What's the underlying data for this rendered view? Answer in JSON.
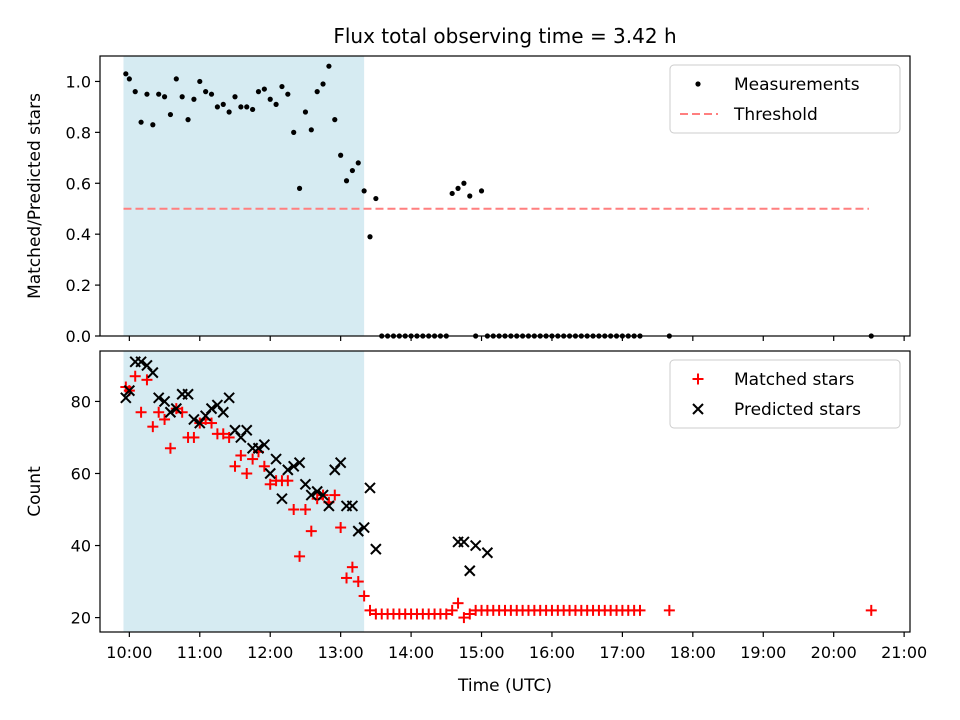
{
  "chart_data": [
    {
      "type": "scatter",
      "title": "Flux total observing time = 3.42 h",
      "xlabel": "",
      "ylabel": "Matched/Predicted stars",
      "xlim": [
        "09:35",
        "21:05"
      ],
      "ylim": [
        0.0,
        1.1
      ],
      "yticks": [
        0.0,
        0.2,
        0.4,
        0.6,
        0.8,
        1.0
      ],
      "yticklabels": [
        "0.0",
        "0.2",
        "0.4",
        "0.6",
        "0.8",
        "1.0"
      ],
      "grid": false,
      "legend": "top-right",
      "shaded_region": {
        "x": [
          "09:55",
          "13:20"
        ],
        "color": "#add8e6"
      },
      "series": [
        {
          "name": "Measurements",
          "marker": "dot",
          "color": "#000000",
          "x": [
            "09:57",
            "10:00",
            "10:05",
            "10:10",
            "10:15",
            "10:20",
            "10:25",
            "10:30",
            "10:35",
            "10:40",
            "10:45",
            "10:50",
            "10:55",
            "11:00",
            "11:05",
            "11:10",
            "11:15",
            "11:20",
            "11:25",
            "11:30",
            "11:35",
            "11:40",
            "11:45",
            "11:50",
            "11:55",
            "12:00",
            "12:05",
            "12:10",
            "12:15",
            "12:20",
            "12:25",
            "12:30",
            "12:35",
            "12:40",
            "12:45",
            "12:50",
            "12:55",
            "13:00",
            "13:05",
            "13:10",
            "13:15",
            "13:20",
            "13:25",
            "13:30",
            "13:35",
            "13:40",
            "13:45",
            "13:50",
            "13:55",
            "14:00",
            "14:05",
            "14:10",
            "14:15",
            "14:20",
            "14:25",
            "14:30",
            "14:35",
            "14:40",
            "14:45",
            "14:50",
            "14:55",
            "15:00",
            "15:05",
            "15:10",
            "15:15",
            "15:20",
            "15:25",
            "15:30",
            "15:35",
            "15:40",
            "15:45",
            "15:50",
            "15:55",
            "16:00",
            "16:05",
            "16:10",
            "16:15",
            "16:20",
            "16:25",
            "16:30",
            "16:35",
            "16:40",
            "16:45",
            "16:50",
            "16:55",
            "17:00",
            "17:05",
            "17:10",
            "17:15",
            "17:40",
            "20:32"
          ],
          "y": [
            1.03,
            1.01,
            0.96,
            0.84,
            0.95,
            0.83,
            0.95,
            0.94,
            0.87,
            1.01,
            0.94,
            0.85,
            0.93,
            1.0,
            0.96,
            0.95,
            0.9,
            0.91,
            0.88,
            0.94,
            0.9,
            0.9,
            0.89,
            0.96,
            0.97,
            0.93,
            0.91,
            0.98,
            0.95,
            0.8,
            0.58,
            0.88,
            0.81,
            0.96,
            0.99,
            1.06,
            0.85,
            0.71,
            0.61,
            0.65,
            0.68,
            0.57,
            0.39,
            0.54,
            0.0,
            0.0,
            0.0,
            0.0,
            0.0,
            0.0,
            0.0,
            0.0,
            0.0,
            0.0,
            0.0,
            0.0,
            0.56,
            0.58,
            0.6,
            0.55,
            0.0,
            0.57,
            0.0,
            0.0,
            0.0,
            0.0,
            0.0,
            0.0,
            0.0,
            0.0,
            0.0,
            0.0,
            0.0,
            0.0,
            0.0,
            0.0,
            0.0,
            0.0,
            0.0,
            0.0,
            0.0,
            0.0,
            0.0,
            0.0,
            0.0,
            0.0,
            0.0,
            0.0,
            0.0,
            0.0,
            0.0
          ]
        },
        {
          "name": "Threshold",
          "line": "dashed",
          "color": "#ff7f7f",
          "x": [
            "09:55",
            "20:30"
          ],
          "y": [
            0.5,
            0.5
          ]
        }
      ]
    },
    {
      "type": "scatter",
      "title": "",
      "xlabel": "Time (UTC)",
      "ylabel": "Count",
      "xlim": [
        "09:35",
        "21:05"
      ],
      "ylim": [
        16,
        94
      ],
      "yticks": [
        20,
        40,
        60,
        80
      ],
      "yticklabels": [
        "20",
        "40",
        "60",
        "80"
      ],
      "xticks": [
        "10:00",
        "11:00",
        "12:00",
        "13:00",
        "14:00",
        "15:00",
        "16:00",
        "17:00",
        "18:00",
        "19:00",
        "20:00",
        "21:00"
      ],
      "xticklabels": [
        "10:00",
        "11:00",
        "12:00",
        "13:00",
        "14:00",
        "15:00",
        "16:00",
        "17:00",
        "18:00",
        "19:00",
        "20:00",
        "21:00"
      ],
      "grid": false,
      "legend": "top-right",
      "shaded_region": {
        "x": [
          "09:55",
          "13:20"
        ],
        "color": "#add8e6"
      },
      "series": [
        {
          "name": "Matched stars",
          "marker": "plus",
          "color": "#ff0000",
          "x": [
            "09:57",
            "10:00",
            "10:05",
            "10:10",
            "10:15",
            "10:20",
            "10:25",
            "10:30",
            "10:35",
            "10:40",
            "10:45",
            "10:50",
            "10:55",
            "11:00",
            "11:05",
            "11:10",
            "11:15",
            "11:20",
            "11:25",
            "11:30",
            "11:35",
            "11:40",
            "11:45",
            "11:50",
            "11:55",
            "12:00",
            "12:05",
            "12:10",
            "12:15",
            "12:20",
            "12:25",
            "12:30",
            "12:35",
            "12:40",
            "12:45",
            "12:50",
            "12:55",
            "13:00",
            "13:05",
            "13:10",
            "13:15",
            "13:20",
            "13:25",
            "13:30",
            "13:35",
            "13:40",
            "13:45",
            "13:50",
            "13:55",
            "14:00",
            "14:05",
            "14:10",
            "14:15",
            "14:20",
            "14:25",
            "14:30",
            "14:35",
            "14:40",
            "14:45",
            "14:50",
            "14:55",
            "15:00",
            "15:05",
            "15:10",
            "15:15",
            "15:20",
            "15:25",
            "15:30",
            "15:35",
            "15:40",
            "15:45",
            "15:50",
            "15:55",
            "16:00",
            "16:05",
            "16:10",
            "16:15",
            "16:20",
            "16:25",
            "16:30",
            "16:35",
            "16:40",
            "16:45",
            "16:50",
            "16:55",
            "17:00",
            "17:05",
            "17:10",
            "17:15",
            "17:40",
            "20:32"
          ],
          "y": [
            84,
            83,
            87,
            77,
            86,
            73,
            77,
            75,
            67,
            78,
            77,
            70,
            70,
            74,
            75,
            74,
            71,
            71,
            70,
            62,
            65,
            60,
            64,
            66,
            62,
            57,
            58,
            58,
            58,
            50,
            37,
            50,
            44,
            53,
            54,
            52,
            54,
            45,
            31,
            34,
            30,
            26,
            22,
            21,
            21,
            21,
            21,
            21,
            21,
            21,
            21,
            21,
            21,
            21,
            21,
            21,
            22,
            24,
            20,
            21,
            22,
            22,
            22,
            22,
            22,
            22,
            22,
            22,
            22,
            22,
            22,
            22,
            22,
            22,
            22,
            22,
            22,
            22,
            22,
            22,
            22,
            22,
            22,
            22,
            22,
            22,
            22,
            22,
            22,
            22,
            22
          ]
        },
        {
          "name": "Predicted stars",
          "marker": "x",
          "color": "#000000",
          "x": [
            "09:57",
            "10:00",
            "10:05",
            "10:10",
            "10:15",
            "10:20",
            "10:25",
            "10:30",
            "10:35",
            "10:40",
            "10:45",
            "10:50",
            "10:55",
            "11:00",
            "11:05",
            "11:10",
            "11:15",
            "11:20",
            "11:25",
            "11:30",
            "11:35",
            "11:40",
            "11:45",
            "11:50",
            "11:55",
            "12:00",
            "12:05",
            "12:10",
            "12:15",
            "12:20",
            "12:25",
            "12:30",
            "12:35",
            "12:40",
            "12:45",
            "12:50",
            "12:55",
            "13:00",
            "13:05",
            "13:10",
            "13:15",
            "13:20",
            "13:25",
            "13:30",
            "14:40",
            "14:45",
            "14:50",
            "14:55",
            "15:05"
          ],
          "y": [
            81,
            83,
            91,
            91,
            90,
            88,
            81,
            80,
            77,
            78,
            82,
            82,
            75,
            74,
            76,
            78,
            79,
            77,
            81,
            72,
            70,
            72,
            67,
            67,
            68,
            60,
            64,
            53,
            61,
            62,
            63,
            57,
            54,
            55,
            54,
            51,
            61,
            63,
            51,
            51,
            44,
            45,
            56,
            39,
            41,
            41,
            33,
            40,
            38
          ]
        }
      ]
    }
  ]
}
